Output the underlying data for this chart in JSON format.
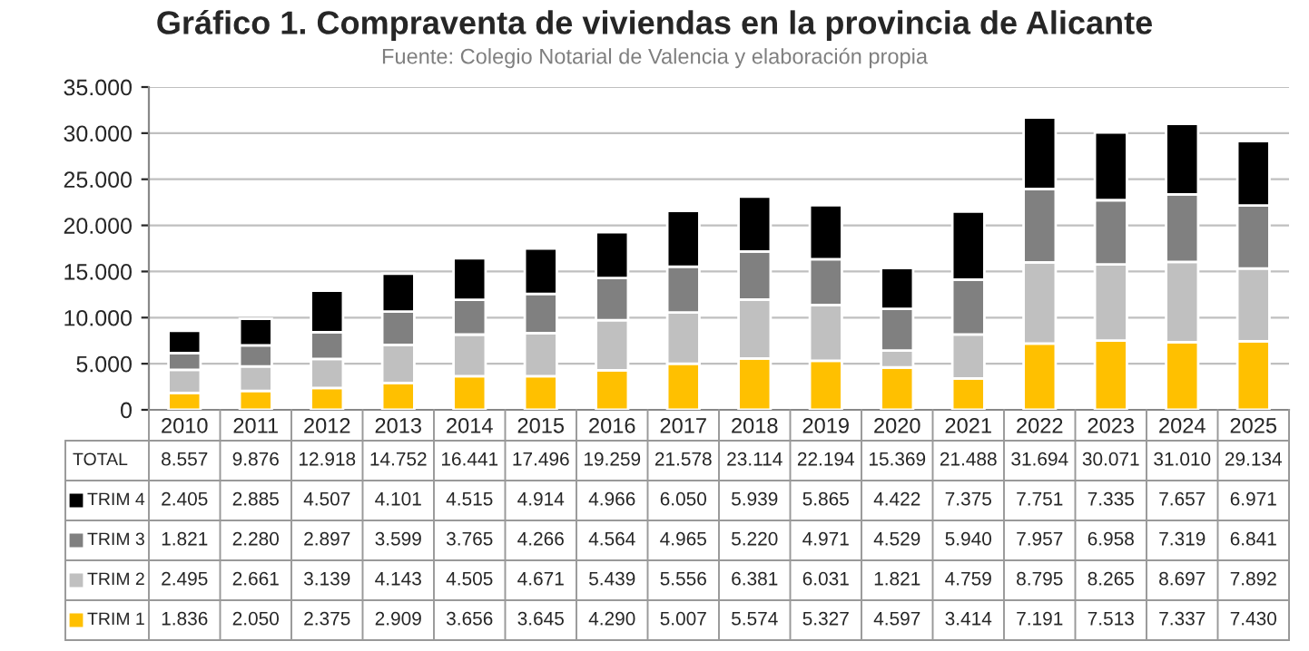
{
  "chart_data": {
    "type": "bar",
    "title": "Gráfico 1. Compraventa de viviendas en la provincia de Alicante",
    "subtitle": "Fuente: Colegio Notarial de Valencia y elaboración propia",
    "categories": [
      "2010",
      "2011",
      "2012",
      "2013",
      "2014",
      "2015",
      "2016",
      "2017",
      "2018",
      "2019",
      "2020",
      "2021",
      "2022",
      "2023",
      "2024",
      "2025"
    ],
    "stacked": true,
    "series": [
      {
        "name": "TRIM 1",
        "color": "#ffc000",
        "values": [
          1836,
          2050,
          2375,
          2909,
          3656,
          3645,
          4290,
          5007,
          5574,
          5327,
          4597,
          3414,
          7191,
          7513,
          7337,
          7430
        ],
        "value_labels": [
          "1.836",
          "2.050",
          "2.375",
          "2.909",
          "3.656",
          "3.645",
          "4.290",
          "5.007",
          "5.574",
          "5.327",
          "4.597",
          "3.414",
          "7.191",
          "7.513",
          "7.337",
          "7.430"
        ]
      },
      {
        "name": "TRIM 2",
        "color": "#c0c0c0",
        "values": [
          2495,
          2661,
          3139,
          4143,
          4505,
          4671,
          5439,
          5556,
          6381,
          6031,
          1821,
          4759,
          8795,
          8265,
          8697,
          7892
        ],
        "value_labels": [
          "2.495",
          "2.661",
          "3.139",
          "4.143",
          "4.505",
          "4.671",
          "5.439",
          "5.556",
          "6.381",
          "6.031",
          "1.821",
          "4.759",
          "8.795",
          "8.265",
          "8.697",
          "7.892"
        ]
      },
      {
        "name": "TRIM 3",
        "color": "#808080",
        "values": [
          1821,
          2280,
          2897,
          3599,
          3765,
          4266,
          4564,
          4965,
          5220,
          4971,
          4529,
          5940,
          7957,
          6958,
          7319,
          6841
        ],
        "value_labels": [
          "1.821",
          "2.280",
          "2.897",
          "3.599",
          "3.765",
          "4.266",
          "4.564",
          "4.965",
          "5.220",
          "4.971",
          "4.529",
          "5.940",
          "7.957",
          "6.958",
          "7.319",
          "6.841"
        ]
      },
      {
        "name": "TRIM 4",
        "color": "#000000",
        "values": [
          2405,
          2885,
          4507,
          4101,
          4515,
          4914,
          4966,
          6050,
          5939,
          5865,
          4422,
          7375,
          7751,
          7335,
          7657,
          6971
        ],
        "value_labels": [
          "2.405",
          "2.885",
          "4.507",
          "4.101",
          "4.515",
          "4.914",
          "4.966",
          "6.050",
          "5.939",
          "5.865",
          "4.422",
          "7.375",
          "7.751",
          "7.335",
          "7.657",
          "6.971"
        ]
      }
    ],
    "annotations": [
      "TOTAL"
    ],
    "legend": "bottom left",
    "totals": [
      "8.557",
      "9.876",
      "12.918",
      "14.752",
      "16.441",
      "17.496",
      "19.259",
      "21.578",
      "23.114",
      "22.194",
      "15.369",
      "21.488",
      "31.694",
      "30.071",
      "31.010",
      "29.134"
    ],
    "ylim": [
      0,
      35000
    ],
    "yticks": [
      {
        "value": 0,
        "label": "0"
      },
      {
        "value": 5000,
        "label": "5.000"
      },
      {
        "value": 10000,
        "label": "10.000"
      },
      {
        "value": 15000,
        "label": "15.000"
      },
      {
        "value": 20000,
        "label": "20.000"
      },
      {
        "value": 25000,
        "label": "25.000"
      },
      {
        "value": 30000,
        "label": "30.000"
      },
      {
        "value": 35000,
        "label": "35.000"
      }
    ],
    "grid": "y"
  }
}
